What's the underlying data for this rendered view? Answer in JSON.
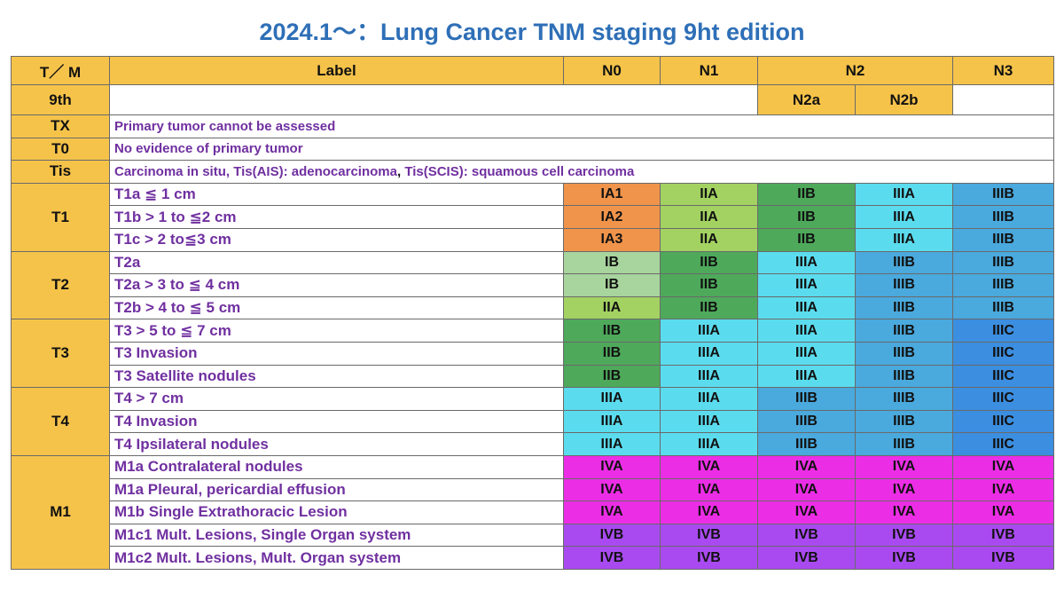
{
  "title": "2024.1～：Lung Cancer TNM staging 9ht edition",
  "header": {
    "tm": "T／ M",
    "label": "Label",
    "n0": "N0",
    "n1": "N1",
    "n2": "N2",
    "n3": "N3",
    "edition": "9th",
    "n2a": "N2a",
    "n2b": "N2b"
  },
  "notes": {
    "tx": {
      "t": "TX",
      "label": "Primary tumor cannot be assessed"
    },
    "t0": {
      "t": "T0",
      "label": "No evidence of primary tumor"
    },
    "tis": {
      "t": "Tis",
      "label_a": "Carcinoma in situ, Tis(AIS): adenocarcinoma",
      "sep": ", ",
      "label_b": "Tis(SCIS): squamous cell carcinoma"
    }
  },
  "groups": [
    {
      "t": "T1",
      "rows": [
        {
          "label": "T1a ≦ 1 cm",
          "stages": [
            "IA1",
            "IIA",
            "IIB",
            "IIIA",
            "IIIB"
          ]
        },
        {
          "label": "T1b > 1 to ≦2 cm",
          "stages": [
            "IA2",
            "IIA",
            "IIB",
            "IIIA",
            "IIIB"
          ]
        },
        {
          "label": "T1c > 2 to≦3 cm",
          "stages": [
            "IA3",
            "IIA",
            "IIB",
            "IIIA",
            "IIIB"
          ]
        }
      ]
    },
    {
      "t": "T2",
      "rows": [
        {
          "label": "T2a",
          "stages": [
            "IB",
            "IIB",
            "IIIA",
            "IIIB",
            "IIIB"
          ]
        },
        {
          "label": "T2a > 3 to ≦ 4 cm",
          "stages": [
            "IB",
            "IIB",
            "IIIA",
            "IIIB",
            "IIIB"
          ]
        },
        {
          "label": "T2b > 4 to ≦ 5 cm",
          "stages": [
            "IIA",
            "IIB",
            "IIIA",
            "IIIB",
            "IIIB"
          ]
        }
      ]
    },
    {
      "t": "T3",
      "rows": [
        {
          "label": "T3 > 5 to ≦ 7 cm",
          "stages": [
            "IIB",
            "IIIA",
            "IIIA",
            "IIIB",
            "IIIC"
          ]
        },
        {
          "label": "T3 Invasion",
          "stages": [
            "IIB",
            "IIIA",
            "IIIA",
            "IIIB",
            "IIIC"
          ]
        },
        {
          "label": "T3 Satellite nodules",
          "stages": [
            "IIB",
            "IIIA",
            "IIIA",
            "IIIB",
            "IIIC"
          ]
        }
      ]
    },
    {
      "t": "T4",
      "rows": [
        {
          "label": "T4 > 7 cm",
          "stages": [
            "IIIA",
            "IIIA",
            "IIIB",
            "IIIB",
            "IIIC"
          ]
        },
        {
          "label": "T4 Invasion",
          "stages": [
            "IIIA",
            "IIIA",
            "IIIB",
            "IIIB",
            "IIIC"
          ]
        },
        {
          "label": "T4 Ipsilateral nodules",
          "stages": [
            "IIIA",
            "IIIA",
            "IIIB",
            "IIIB",
            "IIIC"
          ]
        }
      ]
    },
    {
      "t": "M1",
      "rows": [
        {
          "label": "M1a Contralateral nodules",
          "stages": [
            "IVA",
            "IVA",
            "IVA",
            "IVA",
            "IVA"
          ]
        },
        {
          "label": "M1a Pleural, pericardial effusion",
          "stages": [
            "IVA",
            "IVA",
            "IVA",
            "IVA",
            "IVA"
          ]
        },
        {
          "label": "M1b Single Extrathoracic Lesion",
          "stages": [
            "IVA",
            "IVA",
            "IVA",
            "IVA",
            "IVA"
          ]
        },
        {
          "label": "M1c1 Mult. Lesions, Single Organ system",
          "stages": [
            "IVB",
            "IVB",
            "IVB",
            "IVB",
            "IVB"
          ]
        },
        {
          "label": "M1c2 Mult. Lesions, Mult. Organ system",
          "stages": [
            "IVB",
            "IVB",
            "IVB",
            "IVB",
            "IVB"
          ]
        }
      ]
    }
  ],
  "colors": {
    "title": "#2e6fb7",
    "header_bg": "#f6c34a",
    "label_text": "#7030a0",
    "IA": "#f0944b",
    "IB": "#a8d49d",
    "IIA": "#a3d262",
    "IIB": "#4ea95b",
    "IIIA": "#5bdcee",
    "IIIB": "#4aa9dd",
    "IIIC": "#3c8ee0",
    "IVA": "#ec2de6",
    "IVB": "#a94af0"
  }
}
